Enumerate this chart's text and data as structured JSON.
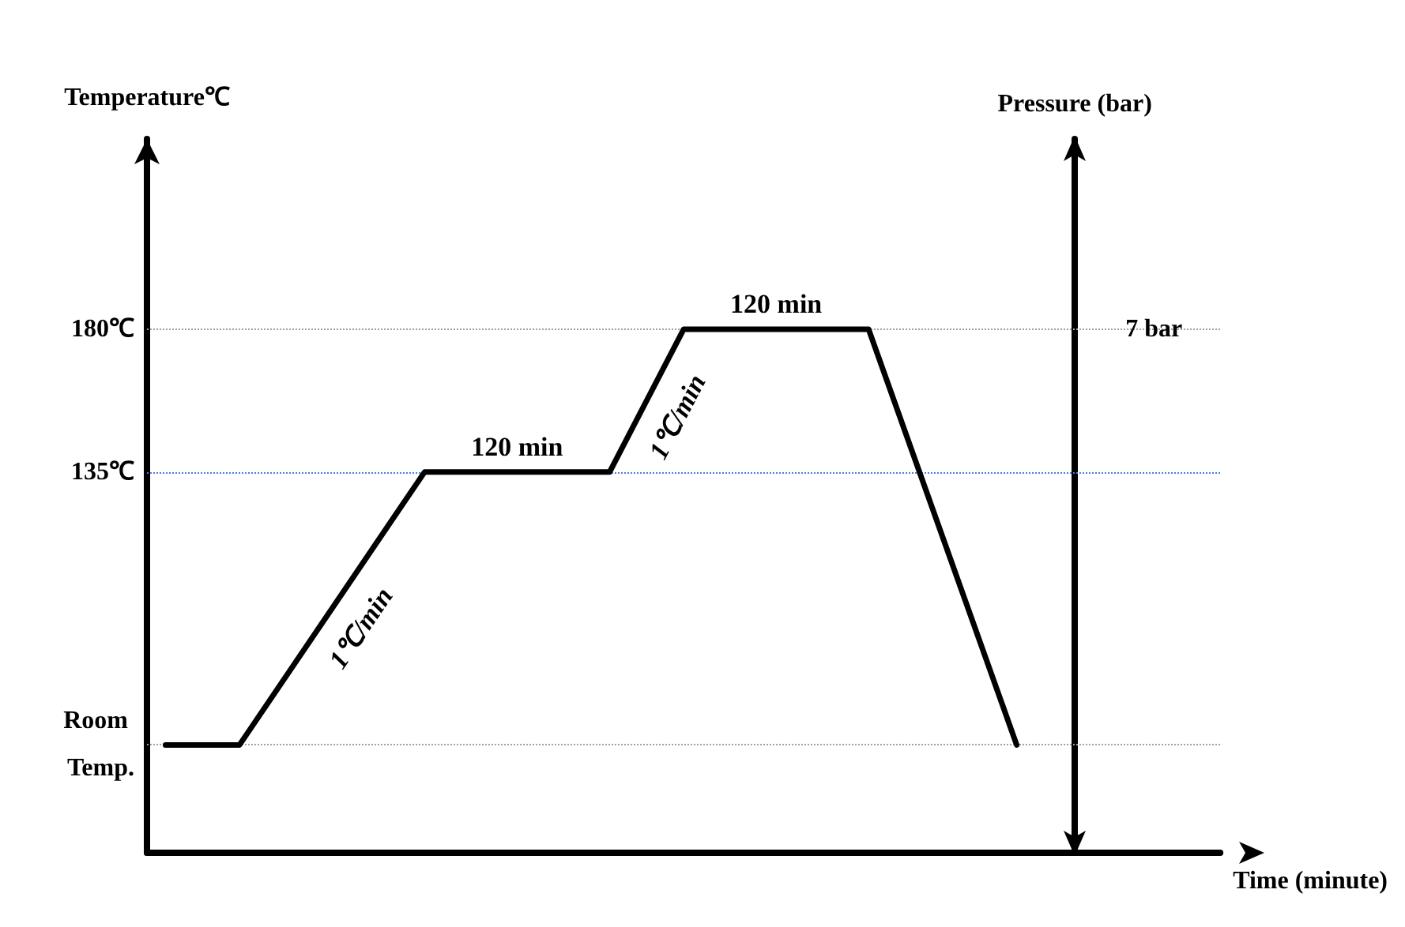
{
  "chart_data": {
    "type": "line",
    "xlabel": "Time (minute)",
    "ylabel": "Temperature℃",
    "y2label": "Pressure (bar)",
    "categories": [
      null,
      null,
      null,
      null,
      null,
      null,
      null,
      null,
      null,
      null,
      null,
      null,
      null,
      null,
      null,
      null,
      null,
      null,
      null,
      null,
      null,
      null,
      null,
      null,
      null,
      null,
      null,
      null,
      null
    ],
    "series": [
      {
        "color": "#000000",
        "values": [
          49,
          null,
          49,
          null,
          null,
          null,
          null,
          135,
          null,
          null,
          null,
          null,
          135,
          null,
          180,
          null,
          null,
          null,
          null,
          180,
          null,
          null,
          null,
          49,
          null,
          null,
          null,
          null,
          null
        ]
      }
    ],
    "ylim": [
      15,
      240
    ],
    "yticks": [
      {
        "value": 49,
        "label": "Room Temp."
      },
      {
        "value": 135,
        "label": "135℃"
      },
      {
        "value": 180,
        "label": "180℃"
      }
    ],
    "tick_labels": "y",
    "ref_lines": [
      {
        "axis": "y",
        "value": 49,
        "color": "#a0a0a0",
        "line_style": "dotted"
      },
      {
        "axis": "y",
        "value": 135,
        "color": "#4a7fd6",
        "line_style": "dotted"
      },
      {
        "axis": "y",
        "value": 180,
        "label": "7 bar",
        "color": "#a0a0a0",
        "line_style": "dotted"
      }
    ],
    "annotations": [
      "1℃/min",
      "120 min",
      "1℃/min",
      "120 min"
    ],
    "grid": false,
    "marker": "none",
    "line_style": "solid"
  }
}
